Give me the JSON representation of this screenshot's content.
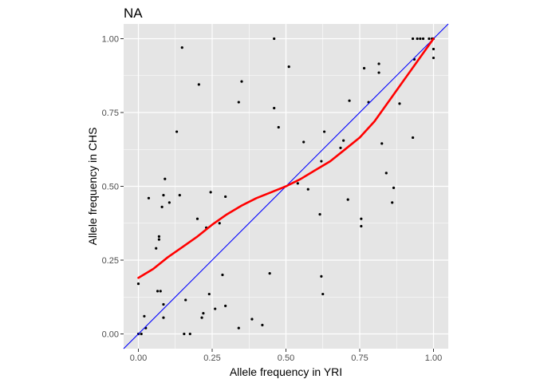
{
  "chart_data": {
    "type": "scatter",
    "title": "NA",
    "xlabel": "Allele frequency in YRI",
    "ylabel": "Allele frequency in CHS",
    "xlim": [
      -0.05,
      1.05
    ],
    "ylim": [
      -0.05,
      1.05
    ],
    "x_ticks": [
      "0.00",
      "0.25",
      "0.50",
      "0.75",
      "1.00"
    ],
    "y_ticks": [
      "0.00",
      "0.25",
      "0.50",
      "0.75",
      "1.00"
    ],
    "grid": true,
    "colors": {
      "panel": "#e5e5e5",
      "grid": "#ffffff",
      "points": "#000000",
      "smooth": "#ff0000",
      "identity": "#0000ff"
    },
    "points": [
      [
        0.0,
        0.17
      ],
      [
        0.0,
        0.0
      ],
      [
        0.01,
        0.0
      ],
      [
        0.02,
        0.06
      ],
      [
        0.025,
        0.02
      ],
      [
        0.035,
        0.46
      ],
      [
        0.06,
        0.29
      ],
      [
        0.065,
        0.145
      ],
      [
        0.07,
        0.32
      ],
      [
        0.07,
        0.33
      ],
      [
        0.075,
        0.145
      ],
      [
        0.08,
        0.43
      ],
      [
        0.085,
        0.47
      ],
      [
        0.085,
        0.1
      ],
      [
        0.085,
        0.055
      ],
      [
        0.09,
        0.525
      ],
      [
        0.105,
        0.445
      ],
      [
        0.13,
        0.685
      ],
      [
        0.14,
        0.47
      ],
      [
        0.148,
        0.97
      ],
      [
        0.155,
        0.0
      ],
      [
        0.16,
        0.115
      ],
      [
        0.175,
        0.0
      ],
      [
        0.2,
        0.39
      ],
      [
        0.205,
        0.845
      ],
      [
        0.215,
        0.055
      ],
      [
        0.22,
        0.07
      ],
      [
        0.23,
        0.36
      ],
      [
        0.24,
        0.135
      ],
      [
        0.245,
        0.48
      ],
      [
        0.26,
        0.085
      ],
      [
        0.275,
        0.375
      ],
      [
        0.285,
        0.2
      ],
      [
        0.295,
        0.095
      ],
      [
        0.295,
        0.465
      ],
      [
        0.34,
        0.785
      ],
      [
        0.34,
        0.02
      ],
      [
        0.35,
        0.855
      ],
      [
        0.385,
        0.05
      ],
      [
        0.42,
        0.03
      ],
      [
        0.445,
        0.205
      ],
      [
        0.46,
        1.0
      ],
      [
        0.46,
        0.765
      ],
      [
        0.475,
        0.7
      ],
      [
        0.51,
        0.905
      ],
      [
        0.54,
        0.51
      ],
      [
        0.56,
        0.65
      ],
      [
        0.575,
        0.49
      ],
      [
        0.615,
        0.405
      ],
      [
        0.62,
        0.195
      ],
      [
        0.62,
        0.585
      ],
      [
        0.625,
        0.135
      ],
      [
        0.63,
        0.685
      ],
      [
        0.685,
        0.63
      ],
      [
        0.695,
        0.655
      ],
      [
        0.71,
        0.455
      ],
      [
        0.715,
        0.79
      ],
      [
        0.755,
        0.39
      ],
      [
        0.755,
        0.365
      ],
      [
        0.765,
        0.9
      ],
      [
        0.78,
        0.785
      ],
      [
        0.815,
        0.915
      ],
      [
        0.815,
        0.885
      ],
      [
        0.825,
        0.645
      ],
      [
        0.84,
        0.545
      ],
      [
        0.86,
        0.445
      ],
      [
        0.865,
        0.495
      ],
      [
        0.885,
        0.78
      ],
      [
        0.93,
        0.665
      ],
      [
        0.93,
        1.0
      ],
      [
        0.935,
        0.93
      ],
      [
        0.945,
        1.0
      ],
      [
        0.955,
        1.0
      ],
      [
        0.965,
        1.0
      ],
      [
        0.985,
        1.0
      ],
      [
        0.995,
        1.0
      ],
      [
        1.0,
        0.965
      ],
      [
        1.0,
        0.935
      ],
      [
        1.0,
        1.0
      ]
    ],
    "smooth_curve": [
      [
        0.0,
        0.19
      ],
      [
        0.05,
        0.22
      ],
      [
        0.1,
        0.26
      ],
      [
        0.15,
        0.295
      ],
      [
        0.2,
        0.33
      ],
      [
        0.25,
        0.37
      ],
      [
        0.3,
        0.405
      ],
      [
        0.35,
        0.435
      ],
      [
        0.4,
        0.46
      ],
      [
        0.45,
        0.48
      ],
      [
        0.5,
        0.5
      ],
      [
        0.55,
        0.525
      ],
      [
        0.6,
        0.555
      ],
      [
        0.65,
        0.585
      ],
      [
        0.7,
        0.625
      ],
      [
        0.75,
        0.665
      ],
      [
        0.8,
        0.72
      ],
      [
        0.85,
        0.79
      ],
      [
        0.9,
        0.86
      ],
      [
        0.95,
        0.93
      ],
      [
        1.0,
        1.0
      ]
    ],
    "reference_line": {
      "intercept": 0,
      "slope": 1
    }
  }
}
